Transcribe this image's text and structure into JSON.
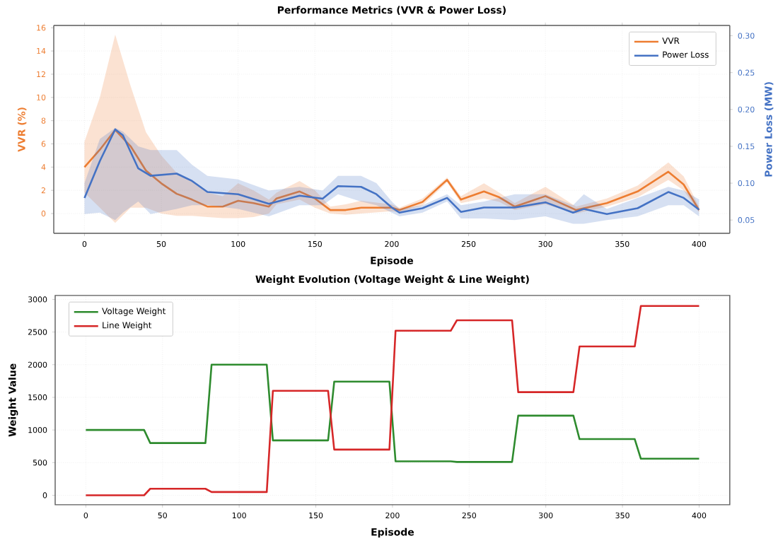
{
  "chart_data": [
    {
      "type": "line",
      "title": "Performance Metrics (VVR & Power Loss)",
      "xlabel": "Episode",
      "ylabel": "VVR (%)",
      "y2label": "Power Loss (MW)",
      "xlim": [
        -20,
        420
      ],
      "xticks": [
        0,
        50,
        100,
        150,
        200,
        250,
        300,
        350,
        400
      ],
      "ylim": [
        -1.7,
        16.2
      ],
      "yticks": [
        0,
        2,
        4,
        6,
        8,
        10,
        12,
        14,
        16
      ],
      "y2lim": [
        0.032,
        0.314
      ],
      "y2ticks": [
        0.05,
        {
          "value": 0.1,
          "label": "0.10"
        },
        0.15,
        {
          "value": 0.2,
          "label": "0.20"
        },
        0.25,
        {
          "value": 0.3,
          "label": "0.30"
        }
      ],
      "grid": true,
      "legend": "top right",
      "series": [
        {
          "name": "VVR",
          "color": "#ed7d31",
          "x": [
            0,
            10,
            20,
            30,
            40,
            50,
            60,
            70,
            80,
            90,
            100,
            110,
            120,
            125,
            140,
            150,
            160,
            170,
            180,
            200,
            205,
            220,
            236,
            245,
            260,
            270,
            280,
            300,
            320,
            340,
            360,
            380,
            390,
            400
          ],
          "values": [
            4.0,
            5.5,
            7.2,
            5.8,
            3.7,
            2.6,
            1.7,
            1.2,
            0.6,
            0.6,
            1.1,
            0.9,
            0.6,
            1.3,
            1.9,
            1.3,
            0.3,
            0.3,
            0.5,
            0.5,
            0.3,
            1.0,
            2.9,
            1.2,
            1.9,
            1.4,
            0.6,
            1.5,
            0.3,
            0.9,
            1.9,
            3.6,
            2.5,
            0.3
          ],
          "lower": [
            1.8,
            0.5,
            -0.8,
            0.5,
            0.5,
            0,
            -0.2,
            -0.2,
            -0.3,
            -0.4,
            -0.4,
            -0.3,
            0,
            0.8,
            1.2,
            0.5,
            0,
            -0.1,
            0,
            0.2,
            0.1,
            0.7,
            2.7,
            0.9,
            1.3,
            1.0,
            0.3,
            0.8,
            0,
            0.6,
            1.4,
            2.9,
            2.0,
            0.1
          ],
          "upper": [
            6.2,
            10,
            15.4,
            11,
            7,
            5,
            3.5,
            2.8,
            1.8,
            1.5,
            2.6,
            2.0,
            1.2,
            1.8,
            2.8,
            2.0,
            0.6,
            0.8,
            1.1,
            0.8,
            0.5,
            1.3,
            3.1,
            1.5,
            2.6,
            1.8,
            0.9,
            2.3,
            0.6,
            1.3,
            2.4,
            4.4,
            3.2,
            0.6
          ]
        },
        {
          "name": "Power Loss",
          "color": "#4472c4",
          "axis": "y2",
          "x": [
            0,
            10,
            20,
            25,
            35,
            43,
            60,
            70,
            80,
            100,
            120,
            140,
            155,
            165,
            180,
            190,
            200,
            205,
            220,
            236,
            245,
            260,
            280,
            300,
            318,
            325,
            340,
            360,
            380,
            390,
            400
          ],
          "values": [
            0.08,
            0.13,
            0.173,
            0.165,
            0.12,
            0.11,
            0.113,
            0.103,
            0.088,
            0.085,
            0.072,
            0.083,
            0.079,
            0.096,
            0.095,
            0.085,
            0.067,
            0.06,
            0.066,
            0.08,
            0.061,
            0.067,
            0.067,
            0.074,
            0.06,
            0.065,
            0.058,
            0.066,
            0.088,
            0.08,
            0.064
          ],
          "lower": [
            0.058,
            0.06,
            0.05,
            0.06,
            0.075,
            0.058,
            0.065,
            0.07,
            0.07,
            0.065,
            0.055,
            0.07,
            0.07,
            0.085,
            0.075,
            0.07,
            0.06,
            0.055,
            0.06,
            0.075,
            0.052,
            0.052,
            0.05,
            0.055,
            0.045,
            0.045,
            0.05,
            0.055,
            0.07,
            0.07,
            0.055
          ],
          "upper": [
            0.1,
            0.16,
            0.175,
            0.17,
            0.15,
            0.145,
            0.145,
            0.125,
            0.11,
            0.105,
            0.09,
            0.095,
            0.09,
            0.11,
            0.11,
            0.1,
            0.075,
            0.065,
            0.07,
            0.085,
            0.07,
            0.075,
            0.085,
            0.085,
            0.07,
            0.085,
            0.065,
            0.08,
            0.095,
            0.09,
            0.078
          ]
        }
      ]
    },
    {
      "type": "line",
      "title": "Weight Evolution (Voltage Weight & Line Weight)",
      "xlabel": "Episode",
      "ylabel": "Weight Value",
      "xlim": [
        -20,
        420
      ],
      "xticks": [
        0,
        50,
        100,
        150,
        200,
        250,
        300,
        350,
        400
      ],
      "ylim": [
        -145,
        3060
      ],
      "yticks": [
        0,
        500,
        1000,
        1500,
        2000,
        2500,
        3000
      ],
      "grid": true,
      "legend": "top left",
      "series": [
        {
          "name": "Voltage Weight",
          "color": "#2e8b2e",
          "x": [
            0,
            38,
            42,
            78,
            82,
            118,
            122,
            158,
            162,
            198,
            202,
            238,
            242,
            278,
            282,
            318,
            322,
            358,
            362,
            400
          ],
          "values": [
            1000,
            1000,
            800,
            800,
            2000,
            2000,
            840,
            840,
            1740,
            1740,
            520,
            520,
            510,
            510,
            1220,
            1220,
            860,
            860,
            560,
            560
          ]
        },
        {
          "name": "Line Weight",
          "color": "#d62728",
          "x": [
            0,
            38,
            42,
            78,
            82,
            118,
            122,
            158,
            162,
            198,
            202,
            238,
            242,
            278,
            282,
            318,
            322,
            358,
            362,
            400
          ],
          "values": [
            0,
            0,
            100,
            100,
            50,
            50,
            1600,
            1600,
            700,
            700,
            2520,
            2520,
            2680,
            2680,
            1580,
            1580,
            2280,
            2280,
            2900,
            2900
          ]
        }
      ]
    }
  ]
}
